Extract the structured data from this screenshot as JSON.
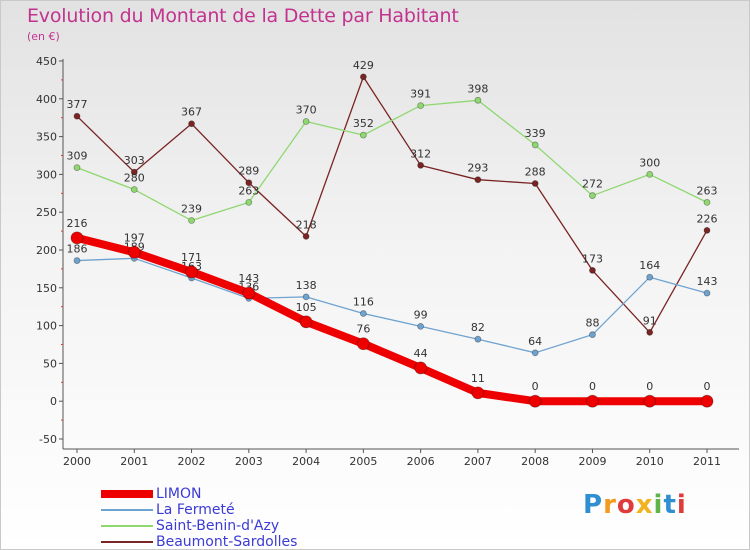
{
  "title": "Evolution du Montant de la Dette par Habitant",
  "unit": "(en €)",
  "brand": {
    "letters": [
      "P",
      "r",
      "o",
      "x",
      "i",
      "t",
      "i"
    ],
    "colors": [
      "#2f8fd0",
      "#f29b1f",
      "#e03b3b",
      "#f2b21f",
      "#5fb548",
      "#2f8fd0",
      "#e03b3b"
    ]
  },
  "chart_data": {
    "type": "line",
    "title": "Evolution du Montant de la Dette par Habitant",
    "ylabel": "(en €)",
    "xlabel": "",
    "x": [
      "2000",
      "2001",
      "2002",
      "2003",
      "2004",
      "2005",
      "2006",
      "2007",
      "2008",
      "2009",
      "2010",
      "2011"
    ],
    "yticks": [
      450,
      400,
      350,
      300,
      250,
      200,
      150,
      100,
      50,
      0,
      -50
    ],
    "ylim": [
      -50,
      450
    ],
    "grid": false,
    "legend": "bottom-left",
    "series": [
      {
        "name": "Beaumont-Sardolles",
        "color": "#7a2424",
        "width": 1.3,
        "marker": 6,
        "values": [
          377,
          303,
          367,
          289,
          218,
          429,
          312,
          293,
          288,
          173,
          91,
          226
        ]
      },
      {
        "name": "Saint-Benin-d'Azy",
        "color": "#8fd870",
        "width": 1.3,
        "marker": 6,
        "values": [
          309,
          280,
          239,
          263,
          370,
          352,
          391,
          398,
          339,
          272,
          300,
          263
        ]
      },
      {
        "name": "La Fermeté",
        "color": "#6fa3cf",
        "width": 1.3,
        "marker": 6,
        "values": [
          186,
          189,
          163,
          136,
          138,
          116,
          99,
          82,
          64,
          88,
          164,
          143
        ]
      },
      {
        "name": "LIMON",
        "color": "#ee0000",
        "width": 8,
        "marker": 12,
        "values": [
          216,
          197,
          171,
          143,
          105,
          76,
          44,
          11,
          0,
          0,
          0,
          0
        ]
      }
    ]
  },
  "legend_items": [
    {
      "name": "LIMON",
      "color": "#ee0000",
      "thickness": 8
    },
    {
      "name": "La Fermeté",
      "color": "#6fa3cf",
      "thickness": 2
    },
    {
      "name": "Saint-Benin-d'Azy",
      "color": "#8fd870",
      "thickness": 2
    },
    {
      "name": "Beaumont-Sardolles",
      "color": "#7a2424",
      "thickness": 2
    }
  ]
}
